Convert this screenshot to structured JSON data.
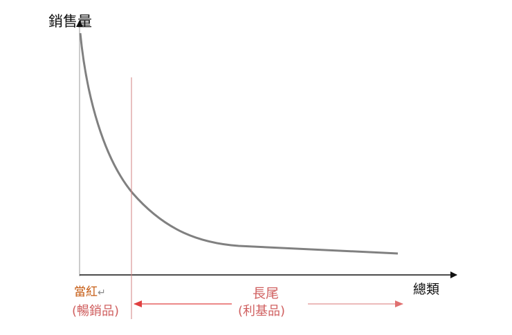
{
  "diagram": {
    "y_axis_label": "銷售量",
    "x_axis_label": "總類",
    "head_label": "當紅",
    "head_return_mark": "↵",
    "head_sublabel": "(暢銷品)",
    "tail_label": "長尾",
    "tail_sublabel": "(利基品)",
    "colors": {
      "curve": "#808080",
      "axis": "#111111",
      "divider": "#d08080",
      "arrow": "#e04040",
      "head_text": "#c55a11",
      "tail_text": "#d06060"
    }
  }
}
